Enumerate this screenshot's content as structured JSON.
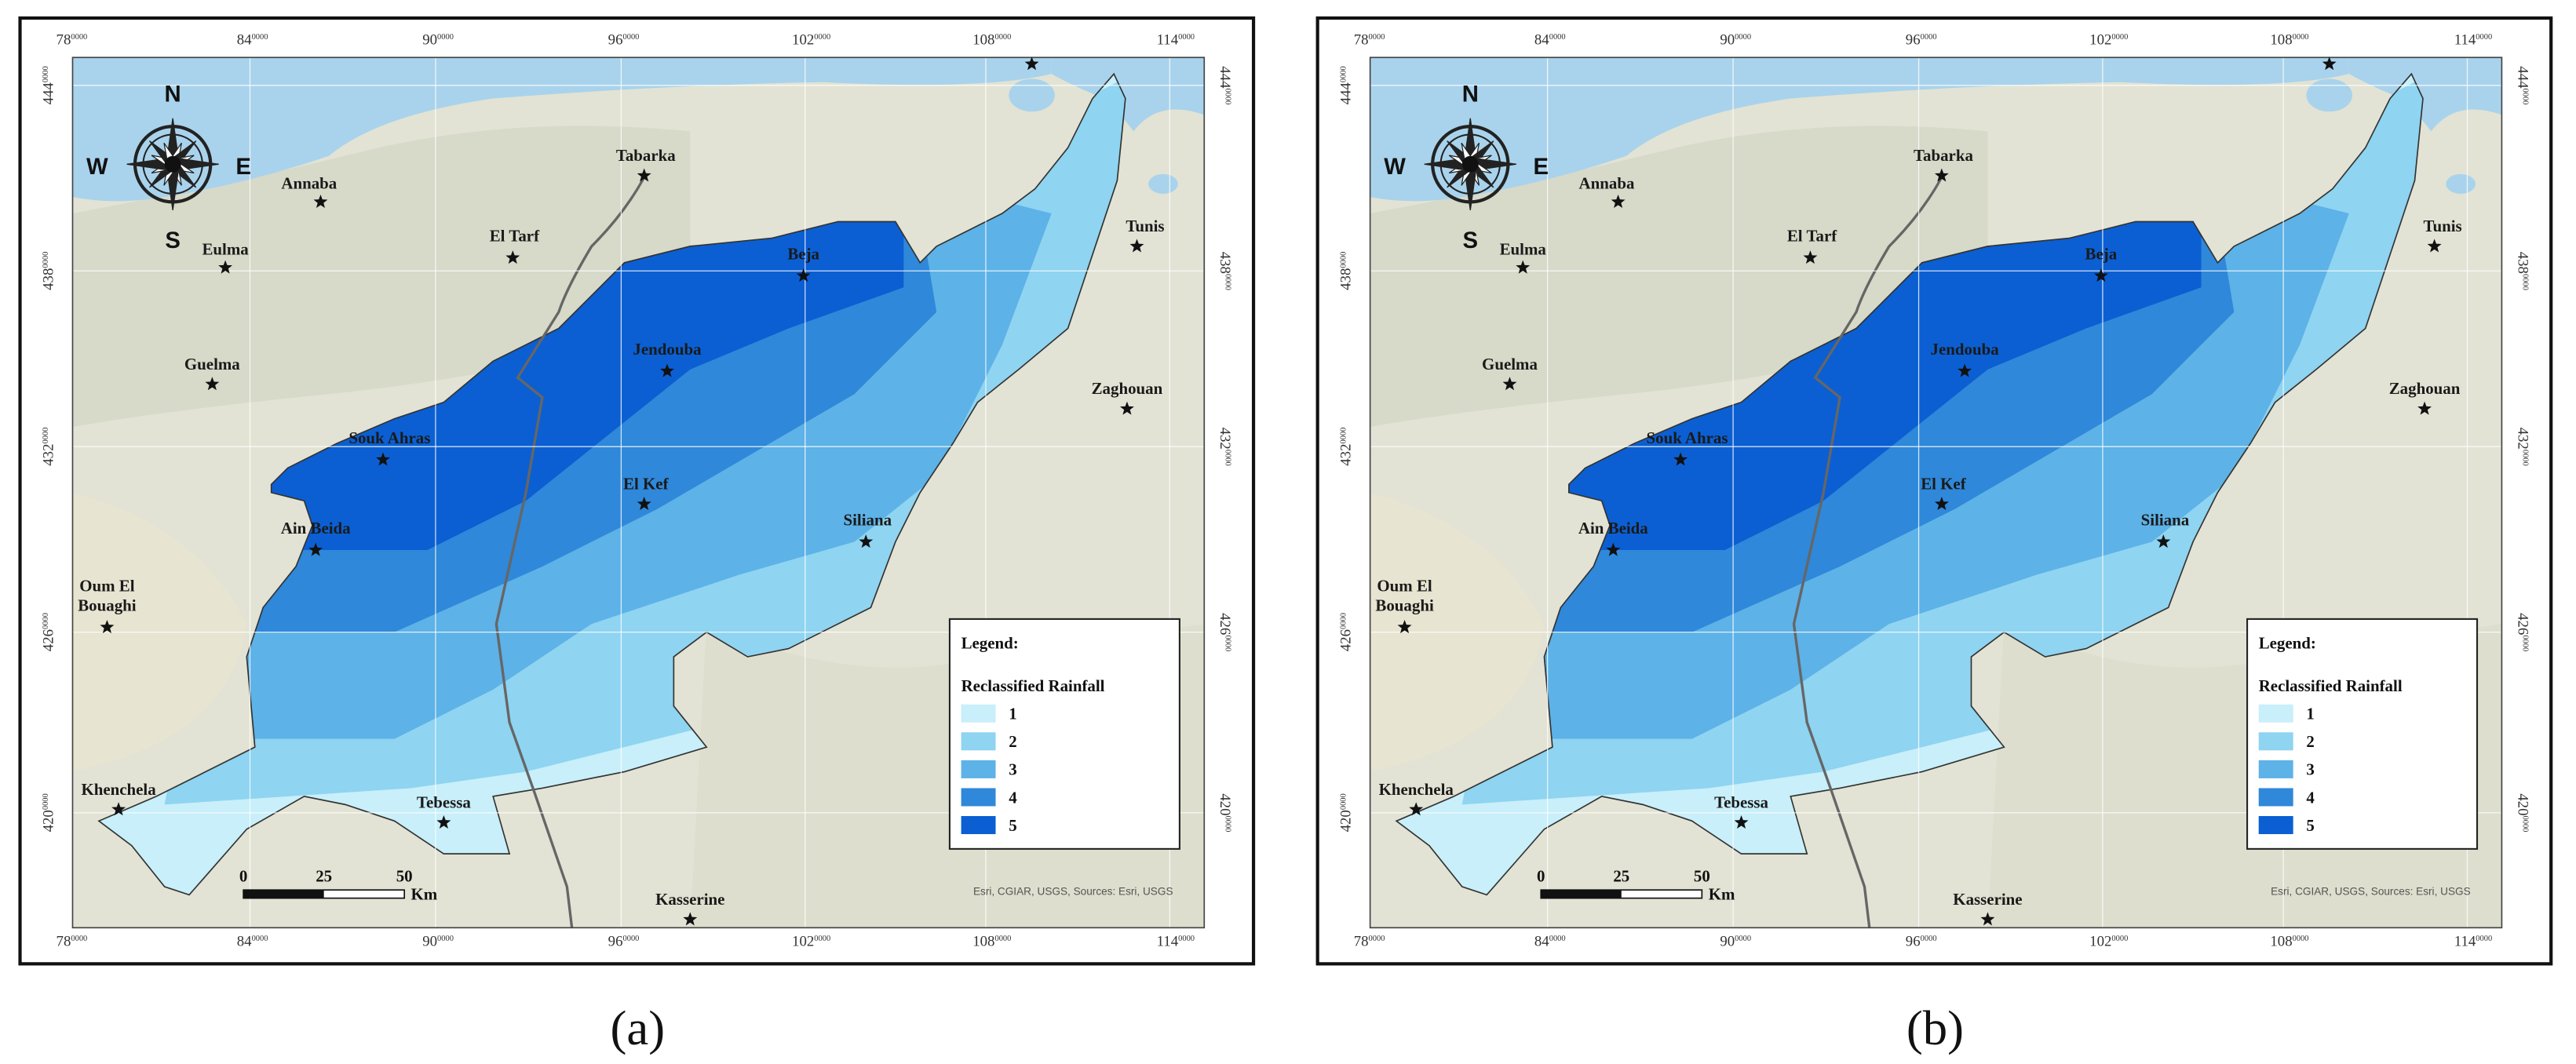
{
  "panels": [
    {
      "caption": "(a)",
      "x_ticks": [
        {
          "main": "78",
          "sup": "0000"
        },
        {
          "main": "84",
          "sup": "0000"
        },
        {
          "main": "90",
          "sup": "0000"
        },
        {
          "main": "96",
          "sup": "0000"
        },
        {
          "main": "102",
          "sup": "0000"
        },
        {
          "main": "108",
          "sup": "0000"
        },
        {
          "main": "114",
          "sup": "0000"
        }
      ],
      "y_ticks": [
        {
          "main": "444",
          "sup": "0000"
        },
        {
          "main": "438",
          "sup": "0000"
        },
        {
          "main": "432",
          "sup": "0000"
        },
        {
          "main": "426",
          "sup": "0000"
        },
        {
          "main": "420",
          "sup": "0000"
        }
      ],
      "compass": {
        "n": "N",
        "s": "S",
        "w": "W",
        "e": "E"
      },
      "cities": [
        [
          "Annaba"
        ],
        [
          "Tabarka"
        ],
        [
          "El Tarf"
        ],
        [
          "Eulma"
        ],
        [
          "Beja"
        ],
        [
          "Tunis"
        ],
        [
          "Guelma"
        ],
        [
          "Jendouba"
        ],
        [
          "Zaghouan"
        ],
        [
          "Souk Ahras"
        ],
        [
          "El Kef"
        ],
        [
          "Siliana"
        ],
        [
          "Ain Beida"
        ],
        [
          "Oum El",
          "Bouaghi"
        ],
        [
          "Khenchela"
        ],
        [
          "Tebessa"
        ],
        [
          "Kasserine"
        ]
      ],
      "legend": {
        "title": "Legend:",
        "subtitle": "Reclassified Rainfall",
        "classes": [
          "1",
          "2",
          "3",
          "4",
          "5"
        ],
        "class_colors": [
          "#c8effa",
          "#8fd4f1",
          "#5db2e7",
          "#2f88d9",
          "#0b5fd2"
        ]
      },
      "scale_bar": {
        "labels": [
          "0",
          "25",
          "50"
        ],
        "unit": "Km"
      },
      "attribution": "Esri, CGIAR, USGS, Sources: Esri, USGS"
    },
    {
      "caption": "(b)",
      "x_ticks": [
        {
          "main": "78",
          "sup": "0000"
        },
        {
          "main": "84",
          "sup": "0000"
        },
        {
          "main": "90",
          "sup": "0000"
        },
        {
          "main": "96",
          "sup": "0000"
        },
        {
          "main": "102",
          "sup": "0000"
        },
        {
          "main": "108",
          "sup": "0000"
        },
        {
          "main": "114",
          "sup": "0000"
        }
      ],
      "y_ticks": [
        {
          "main": "444",
          "sup": "0000"
        },
        {
          "main": "438",
          "sup": "0000"
        },
        {
          "main": "432",
          "sup": "0000"
        },
        {
          "main": "426",
          "sup": "0000"
        },
        {
          "main": "420",
          "sup": "0000"
        }
      ],
      "compass": {
        "n": "N",
        "s": "S",
        "w": "W",
        "e": "E"
      },
      "cities": [
        [
          "Annaba"
        ],
        [
          "Tabarka"
        ],
        [
          "El Tarf"
        ],
        [
          "Eulma"
        ],
        [
          "Beja"
        ],
        [
          "Tunis"
        ],
        [
          "Guelma"
        ],
        [
          "Jendouba"
        ],
        [
          "Zaghouan"
        ],
        [
          "Souk Ahras"
        ],
        [
          "El Kef"
        ],
        [
          "Siliana"
        ],
        [
          "Ain Beida"
        ],
        [
          "Oum El",
          "Bouaghi"
        ],
        [
          "Khenchela"
        ],
        [
          "Tebessa"
        ],
        [
          "Kasserine"
        ]
      ],
      "legend": {
        "title": "Legend:",
        "subtitle": "Reclassified Rainfall",
        "classes": [
          "1",
          "2",
          "3",
          "4",
          "5"
        ],
        "class_colors": [
          "#c8effa",
          "#8fd4f1",
          "#5db2e7",
          "#2f88d9",
          "#0b5fd2"
        ]
      },
      "scale_bar": {
        "labels": [
          "0",
          "25",
          "50"
        ],
        "unit": "Km"
      },
      "attribution": "Esri, CGIAR, USGS, Sources: Esri, USGS"
    }
  ]
}
